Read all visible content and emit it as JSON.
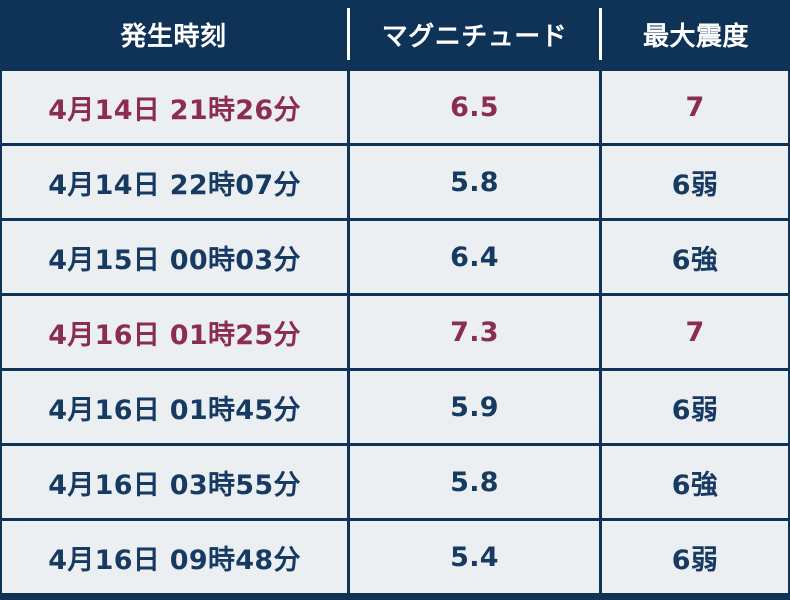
{
  "header": {
    "time_label": "発生時刻",
    "magnitude_label": "マグニチュード",
    "intensity_label": "最大震度"
  },
  "rows": [
    {
      "time": "4月14日  21時26分",
      "magnitude": "6.5",
      "intensity": "7",
      "highlight": true
    },
    {
      "time": "4月14日  22時07分",
      "magnitude": "5.8",
      "intensity": "6弱",
      "highlight": false
    },
    {
      "time": "4月15日  00時03分",
      "magnitude": "6.4",
      "intensity": "6強",
      "highlight": false
    },
    {
      "time": "4月16日  01時25分",
      "magnitude": "7.3",
      "intensity": "7",
      "highlight": true
    },
    {
      "time": "4月16日  01時45分",
      "magnitude": "5.9",
      "intensity": "6弱",
      "highlight": false
    },
    {
      "time": "4月16日  03時55分",
      "magnitude": "5.8",
      "intensity": "6強",
      "highlight": false
    },
    {
      "time": "4月16日  09時48分",
      "magnitude": "5.4",
      "intensity": "6弱",
      "highlight": false
    }
  ],
  "colors": {
    "header_bg": "#0f3257",
    "row_bg": "#eceff2",
    "text_normal": "#173a63",
    "text_highlight": "#8b2d4e"
  }
}
